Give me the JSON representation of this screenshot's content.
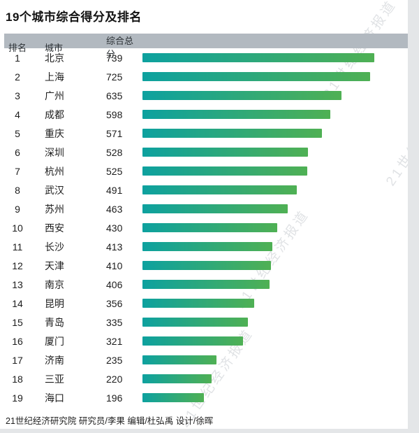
{
  "page": {
    "title": "19个城市综合得分及排名",
    "footer": "21世纪经济研究院 研究员/李果  编辑/杜弘禹  设计/徐晖",
    "watermark": "21世纪经济报道"
  },
  "table": {
    "headers": [
      "排名",
      "城市",
      "综合总分"
    ]
  },
  "chart_data": {
    "type": "bar",
    "orientation": "horizontal",
    "title": "19个城市综合得分及排名",
    "categories": [
      "北京",
      "上海",
      "广州",
      "成都",
      "重庆",
      "深圳",
      "杭州",
      "武汉",
      "苏州",
      "西安",
      "长沙",
      "天津",
      "南京",
      "昆明",
      "青岛",
      "厦门",
      "济南",
      "三亚",
      "海口"
    ],
    "ranks": [
      1,
      2,
      3,
      4,
      5,
      6,
      7,
      8,
      9,
      10,
      11,
      12,
      13,
      14,
      15,
      16,
      17,
      18,
      19
    ],
    "values": [
      739,
      725,
      635,
      598,
      571,
      528,
      525,
      491,
      463,
      430,
      413,
      410,
      406,
      356,
      335,
      321,
      235,
      220,
      196
    ],
    "xlim": [
      0,
      739
    ],
    "bar_color_start": "#0da19f",
    "bar_color_end": "#4fb054",
    "legend": "none",
    "grid": false
  }
}
